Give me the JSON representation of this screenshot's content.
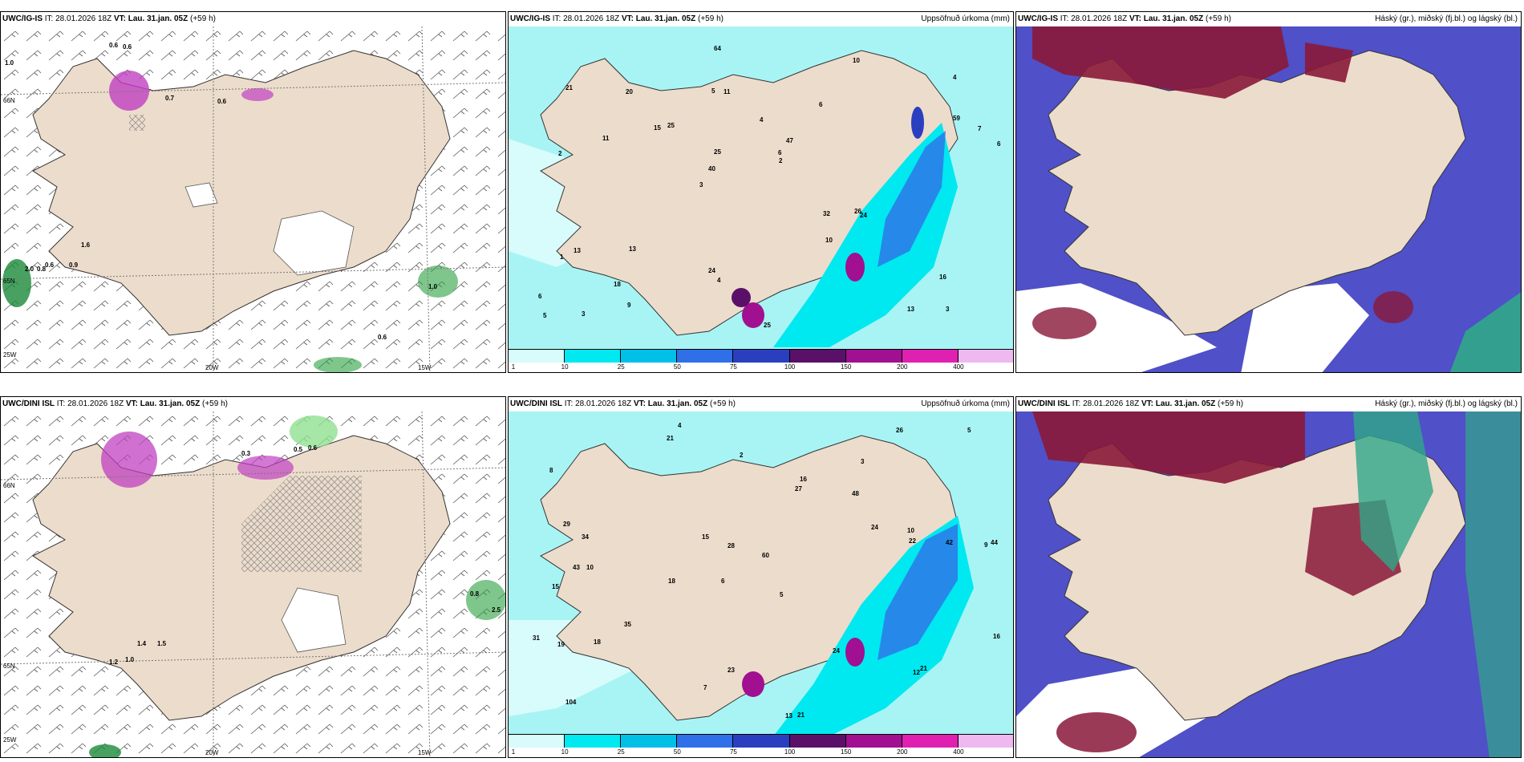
{
  "panels": [
    {
      "model": "UWC/IG-IS",
      "it": "IT: 28.01.2026 18Z",
      "vt_label": "VT:",
      "vt": "Lau. 31.jan. 05Z",
      "lead": "(+59 h)",
      "right_title": ""
    },
    {
      "model": "UWC/IG-IS",
      "it": "IT: 28.01.2026 18Z",
      "vt_label": "VT:",
      "vt": "Lau. 31.jan. 05Z",
      "lead": "(+59 h)",
      "right_title": "Uppsöfnuð úrkoma (mm)"
    },
    {
      "model": "UWC/IG-IS",
      "it": "IT: 28.01.2026 18Z",
      "vt_label": "VT:",
      "vt": "Lau. 31.jan. 05Z",
      "lead": "(+59 h)",
      "right_title": "Háský (gr.), miðský (fj.bl.) og lágský (bl.)"
    },
    {
      "model": "UWC/DINI ISL",
      "it": "IT: 28.01.2026 18Z",
      "vt_label": "VT:",
      "vt": "Lau. 31.jan. 05Z",
      "lead": "(+59 h)",
      "right_title": ""
    },
    {
      "model": "UWC/DINI ISL",
      "it": "IT: 28.01.2026 18Z",
      "vt_label": "VT:",
      "vt": "Lau. 31.jan. 05Z",
      "lead": "(+59 h)",
      "right_title": "Uppsöfnuð úrkoma (mm)"
    },
    {
      "model": "UWC/DINI ISL",
      "it": "IT: 28.01.2026 18Z",
      "vt_label": "VT:",
      "vt": "Lau. 31.jan. 05Z",
      "lead": "(+59 h)",
      "right_title": "Háský (gr.), miðský (fj.bl.) og lágský (bl.)"
    }
  ],
  "axis_labels": {
    "lat66": "66N",
    "lat65": "65N",
    "lon25": "25W",
    "lon20": "20W",
    "lon15": "15W"
  },
  "colorbar": {
    "labels": [
      "1",
      "10",
      "25",
      "50",
      "75",
      "100",
      "150",
      "200",
      "400"
    ],
    "colors": [
      "#d8fbfb",
      "#00e8f0",
      "#00c0e8",
      "#2f70e8",
      "#2a3fc0",
      "#5a1068",
      "#a01090",
      "#e020b0",
      "#f0b8f0"
    ]
  },
  "precip_values_top": [
    "3",
    "2",
    "4",
    "3",
    "6",
    "3",
    "5",
    "4",
    "13",
    "25",
    "6",
    "18",
    "11",
    "47",
    "24",
    "21",
    "64",
    "6",
    "32",
    "59",
    "40",
    "24",
    "25",
    "20",
    "10",
    "13",
    "13",
    "16",
    "26",
    "25",
    "15",
    "11",
    "10",
    "9",
    "7",
    "6",
    "5",
    "4",
    "2",
    "1"
  ],
  "precip_values_bottom": [
    "4",
    "3",
    "9",
    "6",
    "5",
    "10",
    "8",
    "48",
    "15",
    "27",
    "60",
    "104",
    "21",
    "18",
    "13",
    "21",
    "23",
    "26",
    "24",
    "35",
    "34",
    "43",
    "44",
    "42",
    "31",
    "29",
    "28",
    "22",
    "21",
    "19",
    "12",
    "16",
    "18",
    "15",
    "24",
    "16",
    "10",
    "7",
    "5",
    "2"
  ],
  "wind_labels_top": [
    "0.6",
    "0.6",
    "1.0",
    "0.7",
    "0.6",
    "1.6",
    "0.6",
    "0.9",
    "2.0",
    "0.8",
    "1.0",
    "0.6"
  ],
  "wind_labels_bottom": [
    "0.5",
    "0.6",
    "0.8",
    "2.5",
    "1.2",
    "1.0",
    "0.3",
    "1.4",
    "1.5"
  ],
  "colors": {
    "land": "#ecdccb",
    "precip_light": "#a8f4f4",
    "precip_cyan": "#00e8f0",
    "cloud_low": "#5050c8",
    "cloud_high": "#8a1838",
    "cloud_mid": "#30a888",
    "green": "#90e090"
  }
}
